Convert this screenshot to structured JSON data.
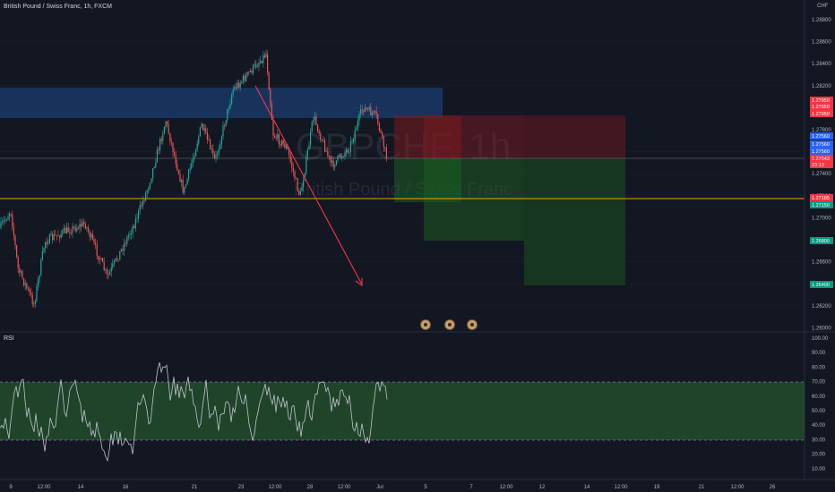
{
  "header": {
    "symbol_title": "British Pound / Swiss Franc, 1h, FXCM",
    "currency": "CHF"
  },
  "watermark": {
    "ticker": "GBPCHF, 1h",
    "name": "British Pound / Swiss Franc"
  },
  "price_axis": {
    "ticks": [
      "1.28800",
      "1.28600",
      "1.28400",
      "1.28200",
      "1.28000",
      "1.27800",
      "1.27600",
      "1.27400",
      "1.27200",
      "1.27000",
      "1.26800",
      "1.26600",
      "1.26400",
      "1.26200",
      "1.26000"
    ],
    "markers": [
      {
        "label": "1.27950",
        "color": "#f23645"
      },
      {
        "label": "1.27950",
        "color": "#f23645"
      },
      {
        "label": "1.27950",
        "color": "#f23645"
      },
      {
        "label": "1.27560",
        "color": "#2962ff"
      },
      {
        "label": "1.27560",
        "color": "#2962ff"
      },
      {
        "label": "1.27560",
        "color": "#2962ff"
      },
      {
        "label": "1.27543",
        "color": "#f23645"
      },
      {
        "label": "23:13",
        "color": "#f23645"
      },
      {
        "label": "1.27185",
        "color": "#f23645"
      },
      {
        "label": "1.27150",
        "color": "#089981"
      },
      {
        "label": "1.26800",
        "color": "#089981"
      },
      {
        "label": "1.26400",
        "color": "#089981"
      }
    ]
  },
  "rsi": {
    "label": "RSI",
    "ticks": [
      "100.00",
      "90.00",
      "80.00",
      "70.00",
      "60.00",
      "50.00",
      "40.00",
      "30.00",
      "20.00",
      "10.00"
    ],
    "upper_band": 70,
    "lower_band": 30
  },
  "time_axis": {
    "labels": [
      "9",
      "12:00",
      "14",
      "16",
      "21",
      "23",
      "12:00",
      "28",
      "12:00",
      "Jul",
      "5",
      "7",
      "12:00",
      "12",
      "14",
      "12:00",
      "19",
      "21",
      "12:00",
      "26"
    ]
  },
  "colors": {
    "background": "#131722",
    "up": "#26a69a",
    "down": "#ef5350",
    "resistance_zone": "#1e4a8a",
    "support_line": "#f2a400",
    "arrow": "#f23645",
    "stop_zone": "#8b1a1a",
    "target_zone": "#1b5e20",
    "rsi_band": "#2e7d32"
  },
  "icons": [
    "event-icon",
    "event-icon",
    "event-icon"
  ]
}
